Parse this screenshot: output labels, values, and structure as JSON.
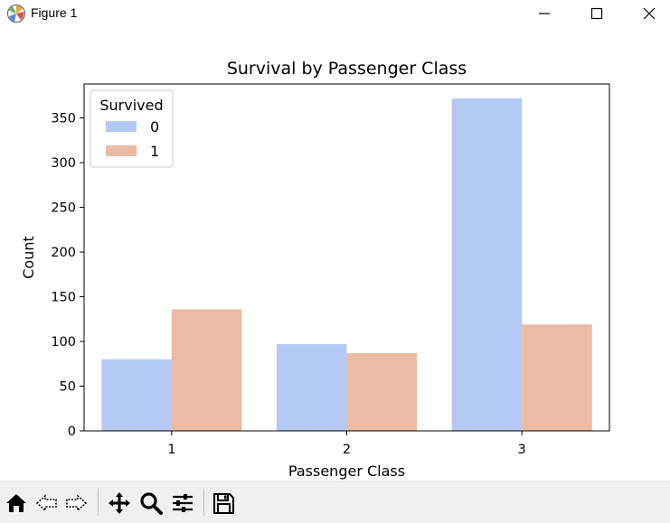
{
  "window": {
    "title": "Figure 1",
    "minimize_icon": "minimize-icon",
    "maximize_icon": "maximize-icon",
    "close_icon": "close-icon"
  },
  "chart_data": {
    "type": "bar",
    "title": "Survival by Passenger Class",
    "xlabel": "Passenger Class",
    "ylabel": "Count",
    "categories": [
      "1",
      "2",
      "3"
    ],
    "series": [
      {
        "name": "0",
        "values": [
          80,
          97,
          372
        ],
        "color": "#b3c9f3"
      },
      {
        "name": "1",
        "values": [
          136,
          87,
          119
        ],
        "color": "#ebbba4"
      }
    ],
    "legend_title": "Survived",
    "legend_placement": "upper-left",
    "ylim": [
      0,
      388
    ],
    "yticks": [
      0,
      50,
      100,
      150,
      200,
      250,
      300,
      350
    ],
    "grid": false
  },
  "toolbar": {
    "items": [
      "home-icon",
      "back-icon",
      "forward-icon",
      "pan-icon",
      "zoom-icon",
      "configure-subplots-icon",
      "save-icon"
    ]
  }
}
